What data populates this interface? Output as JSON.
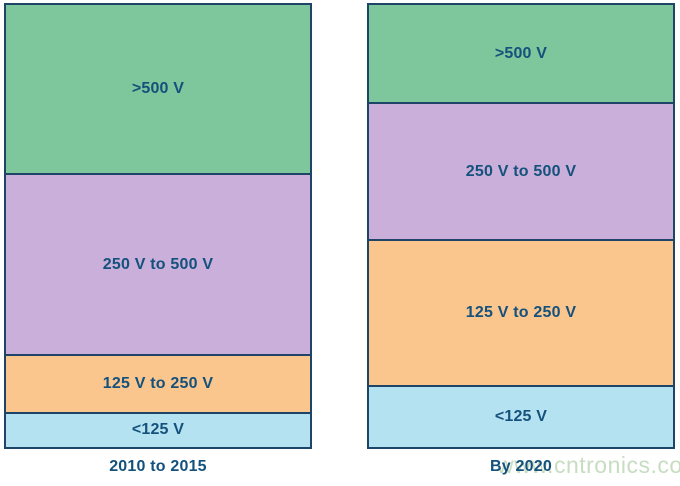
{
  "chart_data": {
    "type": "bar",
    "subtype": "100-percent-stacked-columns",
    "title": "",
    "xlabel": "",
    "ylabel": "",
    "grid": false,
    "legend_position": "labels-inside-segments",
    "value_unit": "percent of column height (estimated from pixels)",
    "categories": [
      "2010 to 2015",
      "By 2020"
    ],
    "series": [
      {
        "name": ">500 V",
        "color": "#7ec69b",
        "values": [
          38,
          22
        ]
      },
      {
        "name": "250 V to 500 V",
        "color": "#c9afd9",
        "values": [
          41,
          31
        ]
      },
      {
        "name": "125 V to 250 V",
        "color": "#fbc68d",
        "values": [
          13,
          33
        ]
      },
      {
        "name": "<125 V",
        "color": "#b5e2f0",
        "values": [
          8,
          14
        ]
      }
    ]
  },
  "colors": {
    "background": "#ffffff",
    "border": "#1e4468",
    "label_text": "#14517c",
    "watermark_text": "#c7ddc2"
  },
  "watermark": {
    "text": "www.cntronics.com"
  }
}
